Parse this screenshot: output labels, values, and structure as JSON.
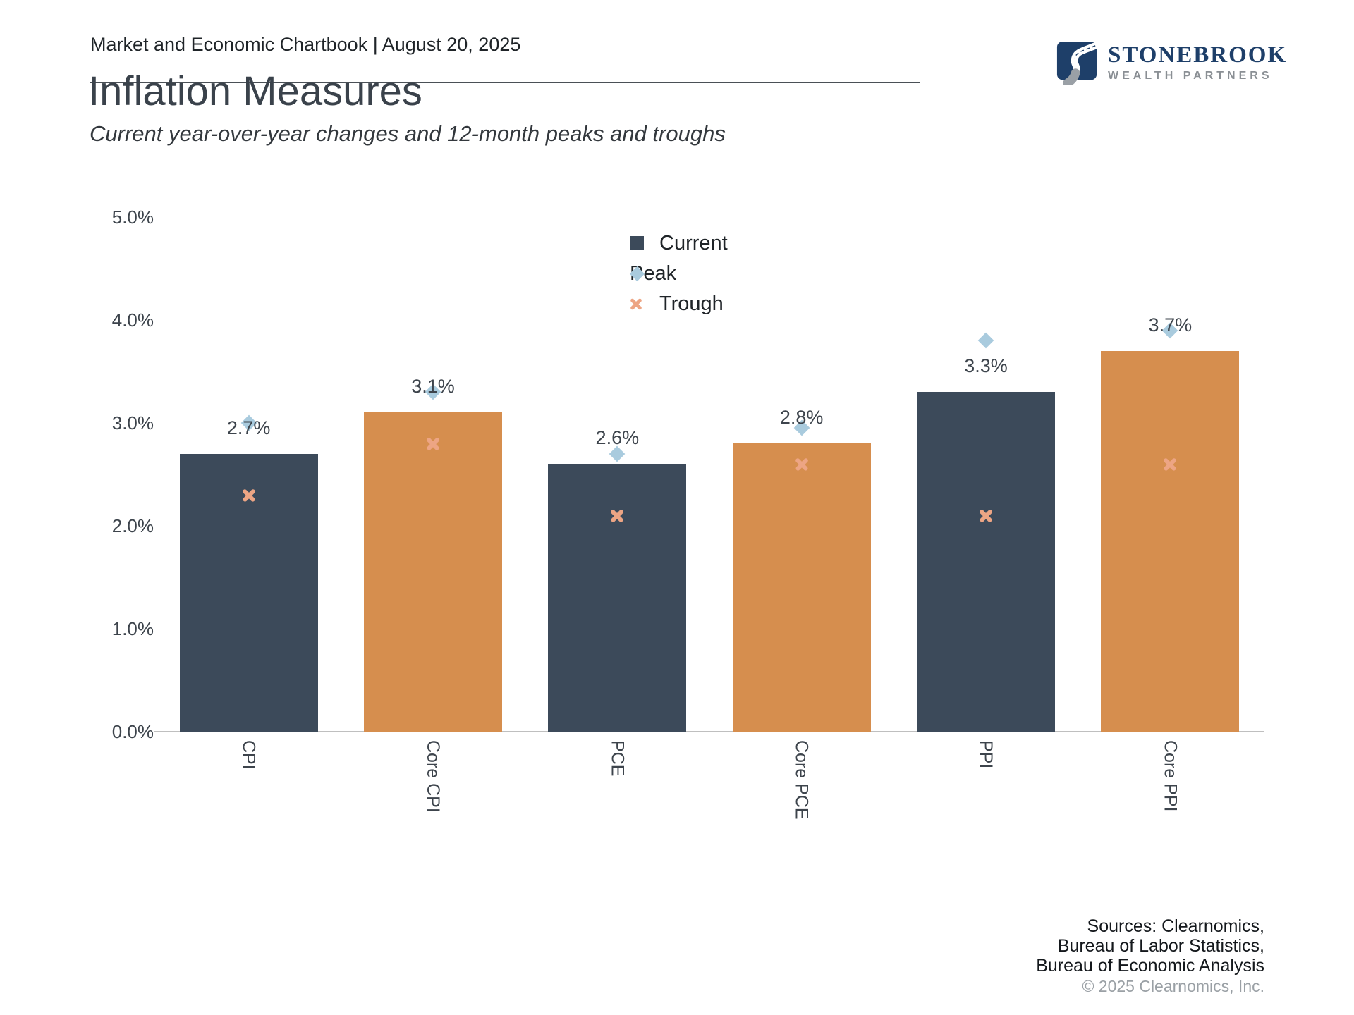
{
  "header": {
    "breadcrumb": "Market and Economic Chartbook | August 20, 2025"
  },
  "logo": {
    "name": "STONEBROOK",
    "tagline": "WEALTH PARTNERS",
    "navy": "#1E3F69",
    "gray": "#8A8F94"
  },
  "title": "Inflation Measures",
  "subtitle": "Current year-over-year changes and 12-month peaks and troughs",
  "legend": {
    "items": [
      {
        "label": "Current",
        "marker": "square",
        "color": "#3C4A5A"
      },
      {
        "label": "Peak",
        "marker": "diamond",
        "color": "#A9CBDE"
      },
      {
        "label": "Trough",
        "marker": "cross",
        "color": "#EDA584"
      }
    ]
  },
  "chart_data": {
    "type": "bar",
    "title": "Inflation Measures",
    "subtitle": "Current year-over-year changes and 12-month peaks and troughs",
    "categories": [
      "CPI",
      "Core CPI",
      "PCE",
      "Core PCE",
      "PPI",
      "Core PPI"
    ],
    "series": [
      {
        "name": "Current",
        "role": "bar",
        "values": [
          2.7,
          3.1,
          2.6,
          2.8,
          3.3,
          3.7
        ],
        "data_labels": [
          "2.7%",
          "3.1%",
          "2.6%",
          "2.8%",
          "3.3%",
          "3.7%"
        ]
      },
      {
        "name": "Peak",
        "role": "marker-diamond",
        "values": [
          3.0,
          3.3,
          2.7,
          2.95,
          3.8,
          3.9
        ]
      },
      {
        "name": "Trough",
        "role": "marker-x",
        "values": [
          2.3,
          2.8,
          2.1,
          2.6,
          2.1,
          2.6
        ]
      }
    ],
    "bar_fill_pattern": [
      "#3C4A5A",
      "#D68E4E"
    ],
    "marker_colors": {
      "peak": "#A9CBDE",
      "trough": "#EDA584"
    },
    "xlabel": "",
    "ylabel": "",
    "ylim": [
      0,
      5
    ],
    "yticks": [
      {
        "v": 0,
        "label": "0.0%"
      },
      {
        "v": 1,
        "label": "1.0%"
      },
      {
        "v": 2,
        "label": "2.0%"
      },
      {
        "v": 3,
        "label": "3.0%"
      },
      {
        "v": 4,
        "label": "4.0%"
      },
      {
        "v": 5,
        "label": "5.0%"
      }
    ],
    "grid": false,
    "legend_position": "upper-center"
  },
  "footer": {
    "sources_lines": [
      "Sources: Clearnomics,",
      "Bureau of Labor Statistics,",
      "Bureau of Economic Analysis"
    ],
    "copyright": "© 2025 Clearnomics, Inc."
  }
}
